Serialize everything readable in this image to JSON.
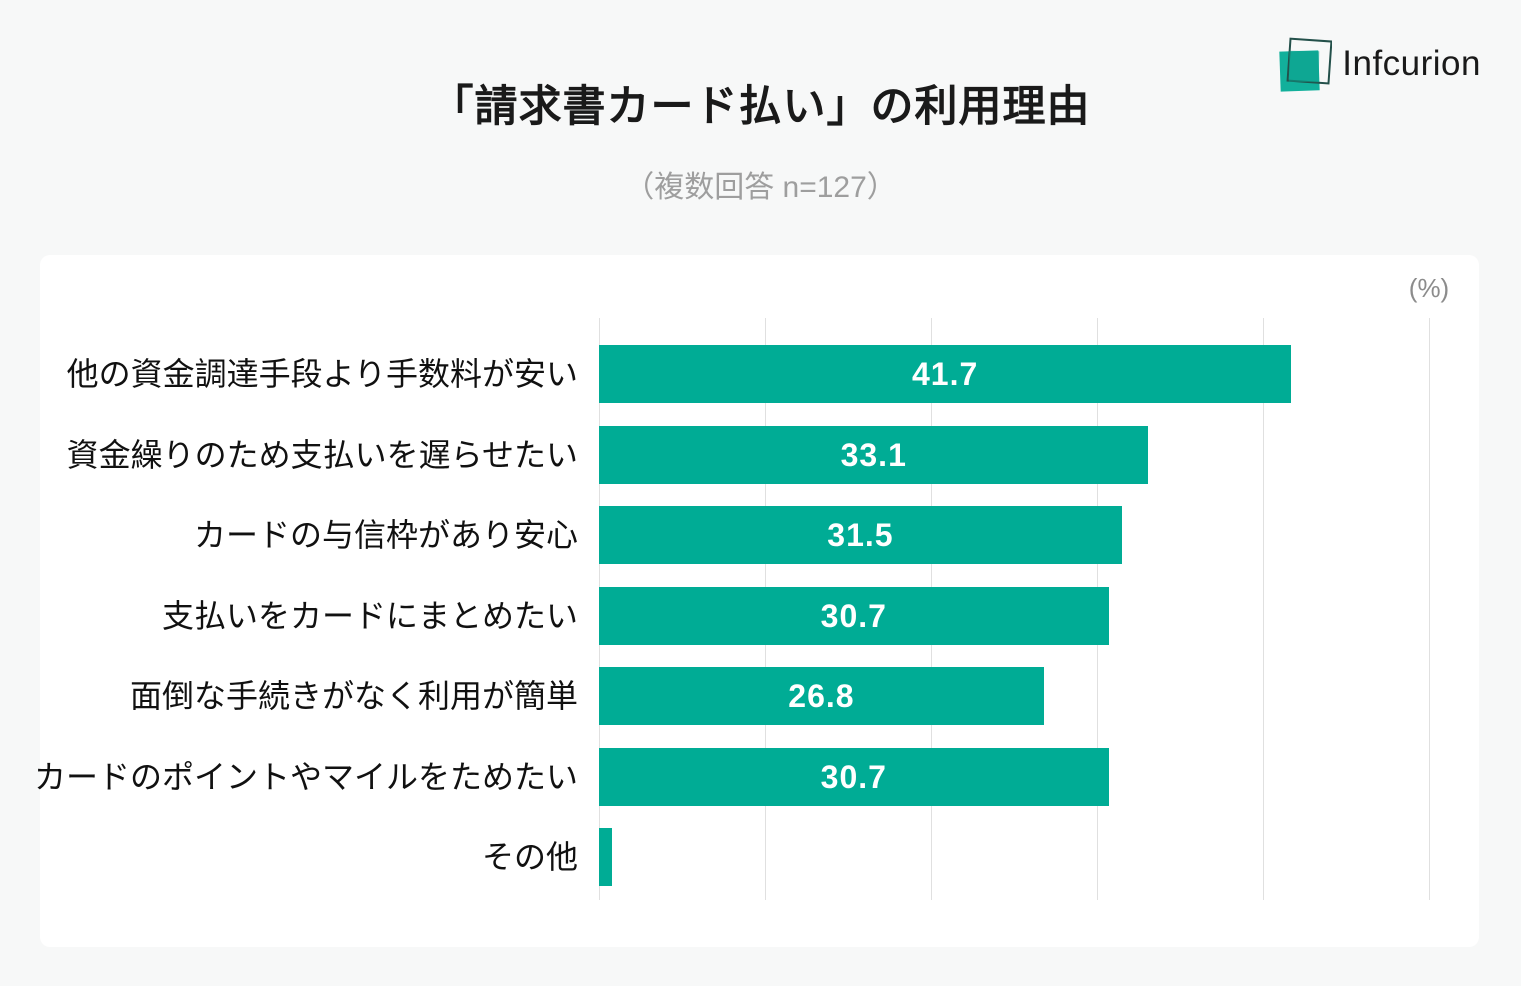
{
  "page": {
    "background_color": "#f7f8f8",
    "panel_color": "#ffffff"
  },
  "logo": {
    "text": "Infcurion",
    "icon": "overlapping-squares-icon",
    "teal_color": "#12b09b",
    "outline_color": "#23504a",
    "text_color": "#1a1a1a"
  },
  "header": {
    "title": "「請求書カード払い」の利用理由",
    "subtitle": "（複数回答 n=127）"
  },
  "chart_data": {
    "type": "bar",
    "orientation": "horizontal",
    "title": "「請求書カード払い」の利用理由",
    "subtitle": "（複数回答 n=127）",
    "sample_size_note": "複数回答 n=127",
    "unit_label": "(%)",
    "categories": [
      "他の資金調達手段より手数料が安い",
      "資金繰りのため支払いを遅らせたい",
      "カードの与信枠があり安心",
      "支払いをカードにまとめたい",
      "面倒な手続きがなく利用が簡単",
      "カードのポイントやマイルをためたい",
      "その他"
    ],
    "values": [
      41.7,
      33.1,
      31.5,
      30.7,
      26.8,
      30.7,
      0.8
    ],
    "value_labels": [
      "41.7",
      "33.1",
      "31.5",
      "30.7",
      "26.8",
      "30.7",
      ""
    ],
    "xlim": [
      0,
      50
    ],
    "gridline_interval": 10,
    "grid": "vertical-only",
    "tick_labels_shown": false,
    "legend": "none",
    "value_labels_position": "inside-center",
    "bar_color": "#00ac95",
    "value_label_color": "#ffffff",
    "gridline_color": "#e0e0e0"
  }
}
